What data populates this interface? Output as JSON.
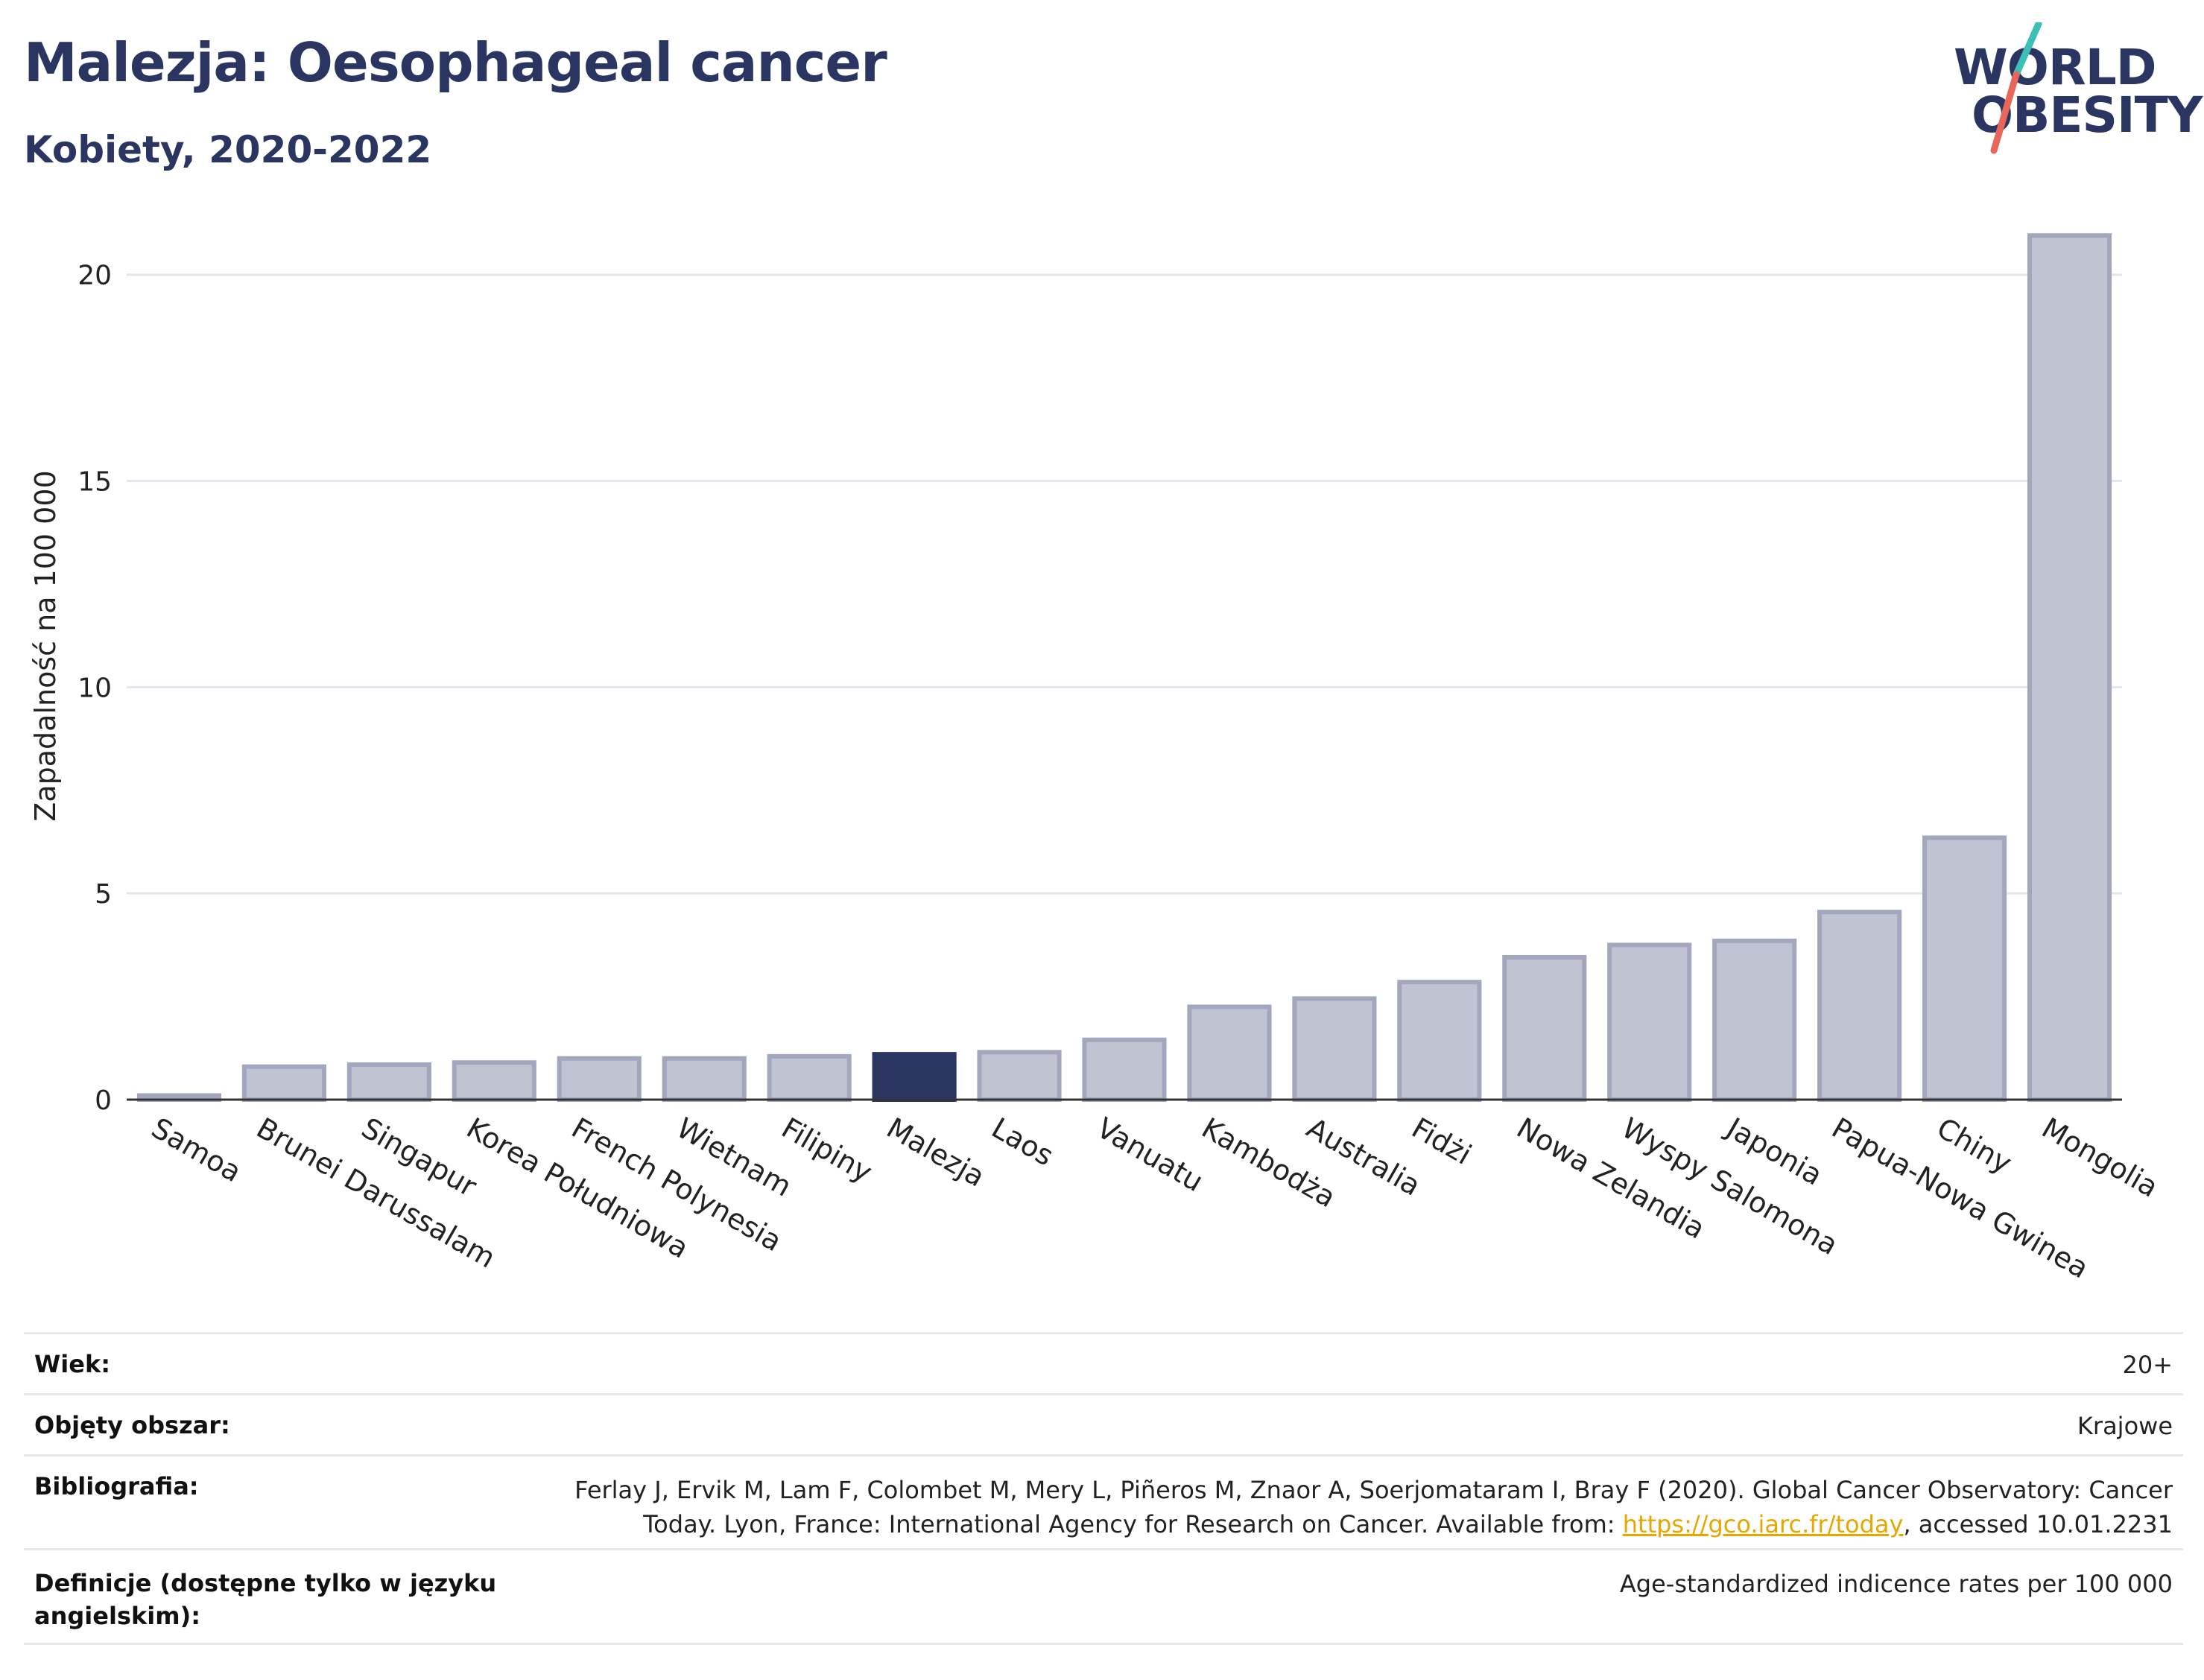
{
  "header": {
    "title": "Malezja: Oesophageal cancer",
    "subtitle": "Kobiety, 2020-2022"
  },
  "logo": {
    "line1": "WORLD",
    "line2": "OBESITY",
    "accent_teal": "#3bbfb7",
    "accent_red": "#e8675a"
  },
  "chart_data": {
    "type": "bar",
    "title": "",
    "xlabel": "",
    "ylabel": "Zapadalność na 100 000",
    "ylim": [
      0,
      22
    ],
    "yticks": [
      0,
      5,
      10,
      15,
      20
    ],
    "grid": true,
    "highlight": "Malezja",
    "colors": {
      "highlight": "#2a3561",
      "default": "#c0c3d2",
      "default_stroke": "#a2a7bd",
      "grid": "#e4e6ee",
      "axis": "#333333"
    },
    "categories": [
      "Samoa",
      "Brunei Darussalam",
      "Singapur",
      "Korea Południowa",
      "French Polynesia",
      "Wietnam",
      "Filipiny",
      "Malezja",
      "Laos",
      "Vanuatu",
      "Kambodża",
      "Australia",
      "Fidżi",
      "Nowa Zelandia",
      "Wyspy Salomona",
      "Japonia",
      "Papua-Nowa Gwinea",
      "Chiny",
      "Mongolia"
    ],
    "values": [
      0.1,
      0.8,
      0.85,
      0.9,
      1.0,
      1.0,
      1.05,
      1.1,
      1.15,
      1.45,
      2.25,
      2.45,
      2.85,
      3.45,
      3.75,
      3.85,
      4.55,
      6.35,
      20.95
    ]
  },
  "meta": [
    {
      "key": "Wiek:",
      "value": "20+"
    },
    {
      "key": "Objęty obszar:",
      "value": "Krajowe"
    },
    {
      "key": "Bibliografia:",
      "value_line1": "Ferlay J, Ervik M, Lam F, Colombet M, Mery L, Piñeros M, Znaor A, Soerjomataram I, Bray F (2020). Global Cancer Observatory: Cancer",
      "value_line2_pre": "Today. Lyon, France: International Agency for Research on Cancer. Available from: ",
      "link": "https://gco.iarc.fr/today",
      "value_line2_post": ", accessed 10.01.2231"
    },
    {
      "key_line1": "Definicje (dostępne tylko w języku",
      "key_line2": "angielskim):",
      "value": "Age-standardized indicence rates per 100 000"
    }
  ]
}
